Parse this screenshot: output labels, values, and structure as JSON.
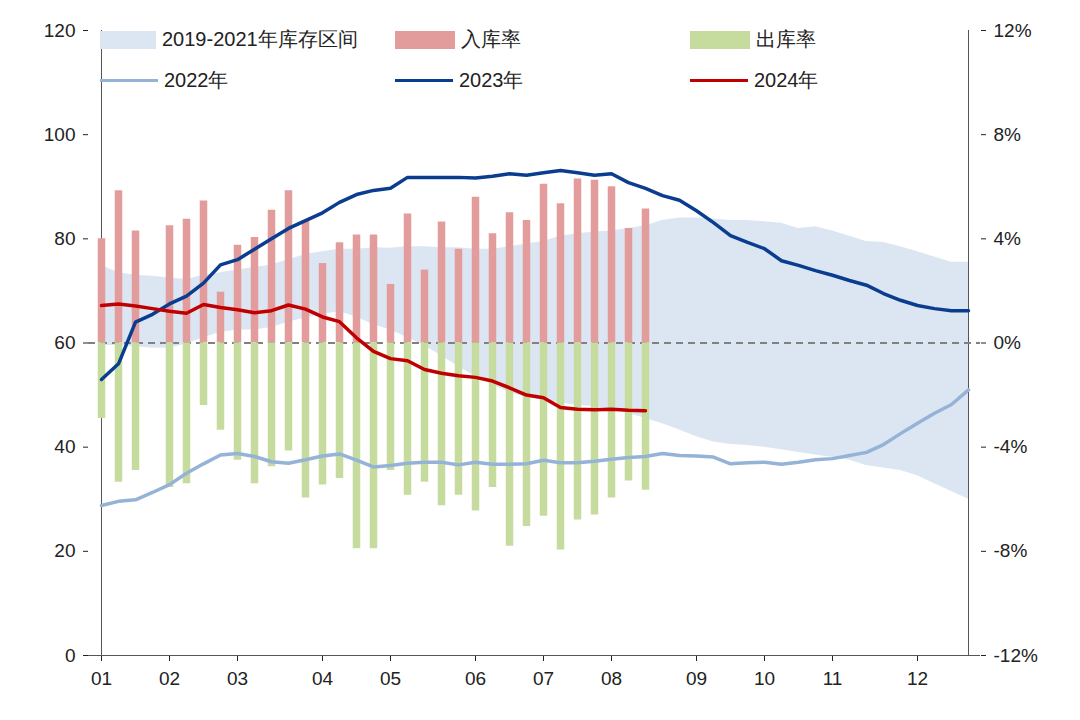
{
  "chart_data": {
    "type": "line",
    "legend": "top",
    "grid": false,
    "categories": [
      "01",
      null,
      null,
      null,
      "02",
      null,
      null,
      null,
      "03",
      null,
      null,
      null,
      null,
      "04",
      null,
      null,
      null,
      "05",
      null,
      null,
      null,
      null,
      "06",
      null,
      null,
      null,
      "07",
      null,
      null,
      null,
      "08",
      null,
      null,
      null,
      null,
      "09",
      null,
      null,
      null,
      "10",
      null,
      null,
      null,
      "11",
      null,
      null,
      null,
      null,
      "12",
      null,
      null,
      null
    ],
    "ylim": [
      0,
      120
    ],
    "yticks": [
      0,
      20,
      40,
      60,
      80,
      100,
      120
    ],
    "y2lim": [
      -12,
      12
    ],
    "y2ticks": [
      {
        "value": -12,
        "label": "-12%"
      },
      {
        "value": -8,
        "label": "-8%"
      },
      {
        "value": -4,
        "label": "-4%"
      },
      {
        "value": 0,
        "label": "0%"
      },
      {
        "value": 4,
        "label": "4%"
      },
      {
        "value": 8,
        "label": "8%"
      },
      {
        "value": 12,
        "label": "12%"
      }
    ],
    "series": [
      {
        "name": "2019-2021年库存区间",
        "type": "area",
        "color": "#dce6f2",
        "lower": [
          59.5,
          59.5,
          59.3,
          59,
          59,
          59.8,
          61,
          62,
          62.5,
          62.5,
          63,
          64,
          64.8,
          65.5,
          66,
          65,
          63.5,
          62.5,
          61,
          59.5,
          57.5,
          55.5,
          53.5,
          52,
          50.5,
          49.5,
          49,
          48.5,
          48,
          47.8,
          47.3,
          46.5,
          45.5,
          44.5,
          43.3,
          42,
          41,
          40.5,
          40.3,
          40,
          39.5,
          39,
          38.5,
          38,
          37.5,
          36.5,
          36,
          35.5,
          34.5,
          33,
          31.5,
          30
        ],
        "upper": [
          74.9,
          73.5,
          73,
          72.8,
          72.5,
          72.2,
          73,
          73.5,
          74,
          74.5,
          75,
          76,
          77,
          77.5,
          78,
          78,
          78.3,
          78.2,
          78.5,
          78.5,
          78.3,
          78.3,
          78,
          78,
          78.5,
          79,
          79.5,
          80.5,
          81,
          81.3,
          81.5,
          82,
          82.5,
          83.5,
          84,
          84,
          83.8,
          83.5,
          83.5,
          83.3,
          83,
          82,
          82.3,
          81.5,
          80.5,
          79.5,
          79.3,
          78.5,
          77.5,
          76.5,
          75.5,
          75.5
        ]
      },
      {
        "name": "入库率",
        "type": "bar",
        "axis": "y2",
        "color": "#e39c9c",
        "values": [
          4.0,
          5.85,
          4.3,
          null,
          4.5,
          4.75,
          5.45,
          1.95,
          3.75,
          4.05,
          5.1,
          5.85,
          4.7,
          3.05,
          3.85,
          4.15,
          4.15,
          2.25,
          4.95,
          2.8,
          4.65,
          3.6,
          5.6,
          4.2,
          5.0,
          4.7,
          6.1,
          5.35,
          6.3,
          6.25,
          6.0,
          4.4,
          5.15,
          null,
          null,
          null,
          null,
          null,
          null,
          null,
          null,
          null,
          null,
          null,
          null,
          null,
          null,
          null,
          null,
          null,
          null,
          null
        ]
      },
      {
        "name": "出库率",
        "type": "bar",
        "axis": "y2",
        "color": "#c6dc9e",
        "values": [
          -2.9,
          -5.35,
          -4.9,
          null,
          -5.55,
          -5.4,
          -2.4,
          -3.35,
          -4.5,
          -5.4,
          -4.75,
          -4.15,
          -5.95,
          -5.45,
          -5.2,
          -7.9,
          -7.9,
          -4.9,
          -5.85,
          -5.35,
          -6.25,
          -5.85,
          -6.45,
          -5.55,
          -7.8,
          -7.05,
          -6.65,
          -7.95,
          -6.8,
          -6.6,
          -5.95,
          -5.3,
          -5.65,
          null,
          null,
          null,
          null,
          null,
          null,
          null,
          null,
          null,
          null,
          null,
          null,
          null,
          null,
          null,
          null,
          null,
          null,
          null
        ]
      },
      {
        "name": "2022年",
        "type": "line",
        "color": "#95b3d7",
        "values": [
          28.8,
          29.6,
          29.9,
          31.3,
          32.8,
          35,
          36.8,
          38.5,
          38.8,
          38.2,
          37.2,
          36.9,
          37.6,
          38.3,
          38.7,
          37.5,
          36.2,
          36.5,
          36.9,
          37.1,
          37.1,
          36.6,
          37.1,
          36.7,
          36.7,
          36.8,
          37.5,
          37,
          37,
          37.3,
          37.7,
          38,
          38.2,
          38.8,
          38.4,
          38.3,
          38.1,
          36.8,
          37,
          37.1,
          36.7,
          37.1,
          37.6,
          37.8,
          38.4,
          39,
          40.5,
          42.6,
          44.6,
          46.5,
          48.2,
          51
        ]
      },
      {
        "name": "2023年",
        "type": "line",
        "color": "#0a3d8f",
        "values": [
          53,
          56,
          64,
          65.5,
          67.5,
          69,
          71.5,
          75,
          76,
          78,
          80,
          82,
          83.5,
          85,
          87,
          88.5,
          89.3,
          89.7,
          91.8,
          91.8,
          91.8,
          91.8,
          91.7,
          92,
          92.5,
          92.2,
          92.7,
          93.1,
          92.7,
          92.2,
          92.5,
          90.8,
          89.7,
          88.3,
          87.4,
          85.4,
          83.1,
          80.6,
          79.3,
          78.1,
          75.8,
          74.9,
          73.9,
          73,
          72,
          71.1,
          69.5,
          68.2,
          67.2,
          66.6,
          66.2,
          66.2
        ]
      },
      {
        "name": "2024年",
        "type": "line",
        "color": "#c00000",
        "values": [
          67.2,
          67.5,
          67.1,
          66.6,
          66.1,
          65.7,
          67.4,
          66.8,
          66.4,
          65.8,
          66.2,
          67.3,
          66.5,
          65,
          64.1,
          61,
          58.4,
          57,
          56.6,
          54.9,
          54.2,
          53.7,
          53.4,
          52.7,
          51.4,
          50,
          49.5,
          47.6,
          47.3,
          47.2,
          47.3,
          47.1,
          47,
          null,
          null,
          null,
          null,
          null,
          null,
          null,
          null,
          null,
          null,
          null,
          null,
          null,
          null,
          null,
          null,
          null,
          null,
          null
        ]
      }
    ]
  }
}
